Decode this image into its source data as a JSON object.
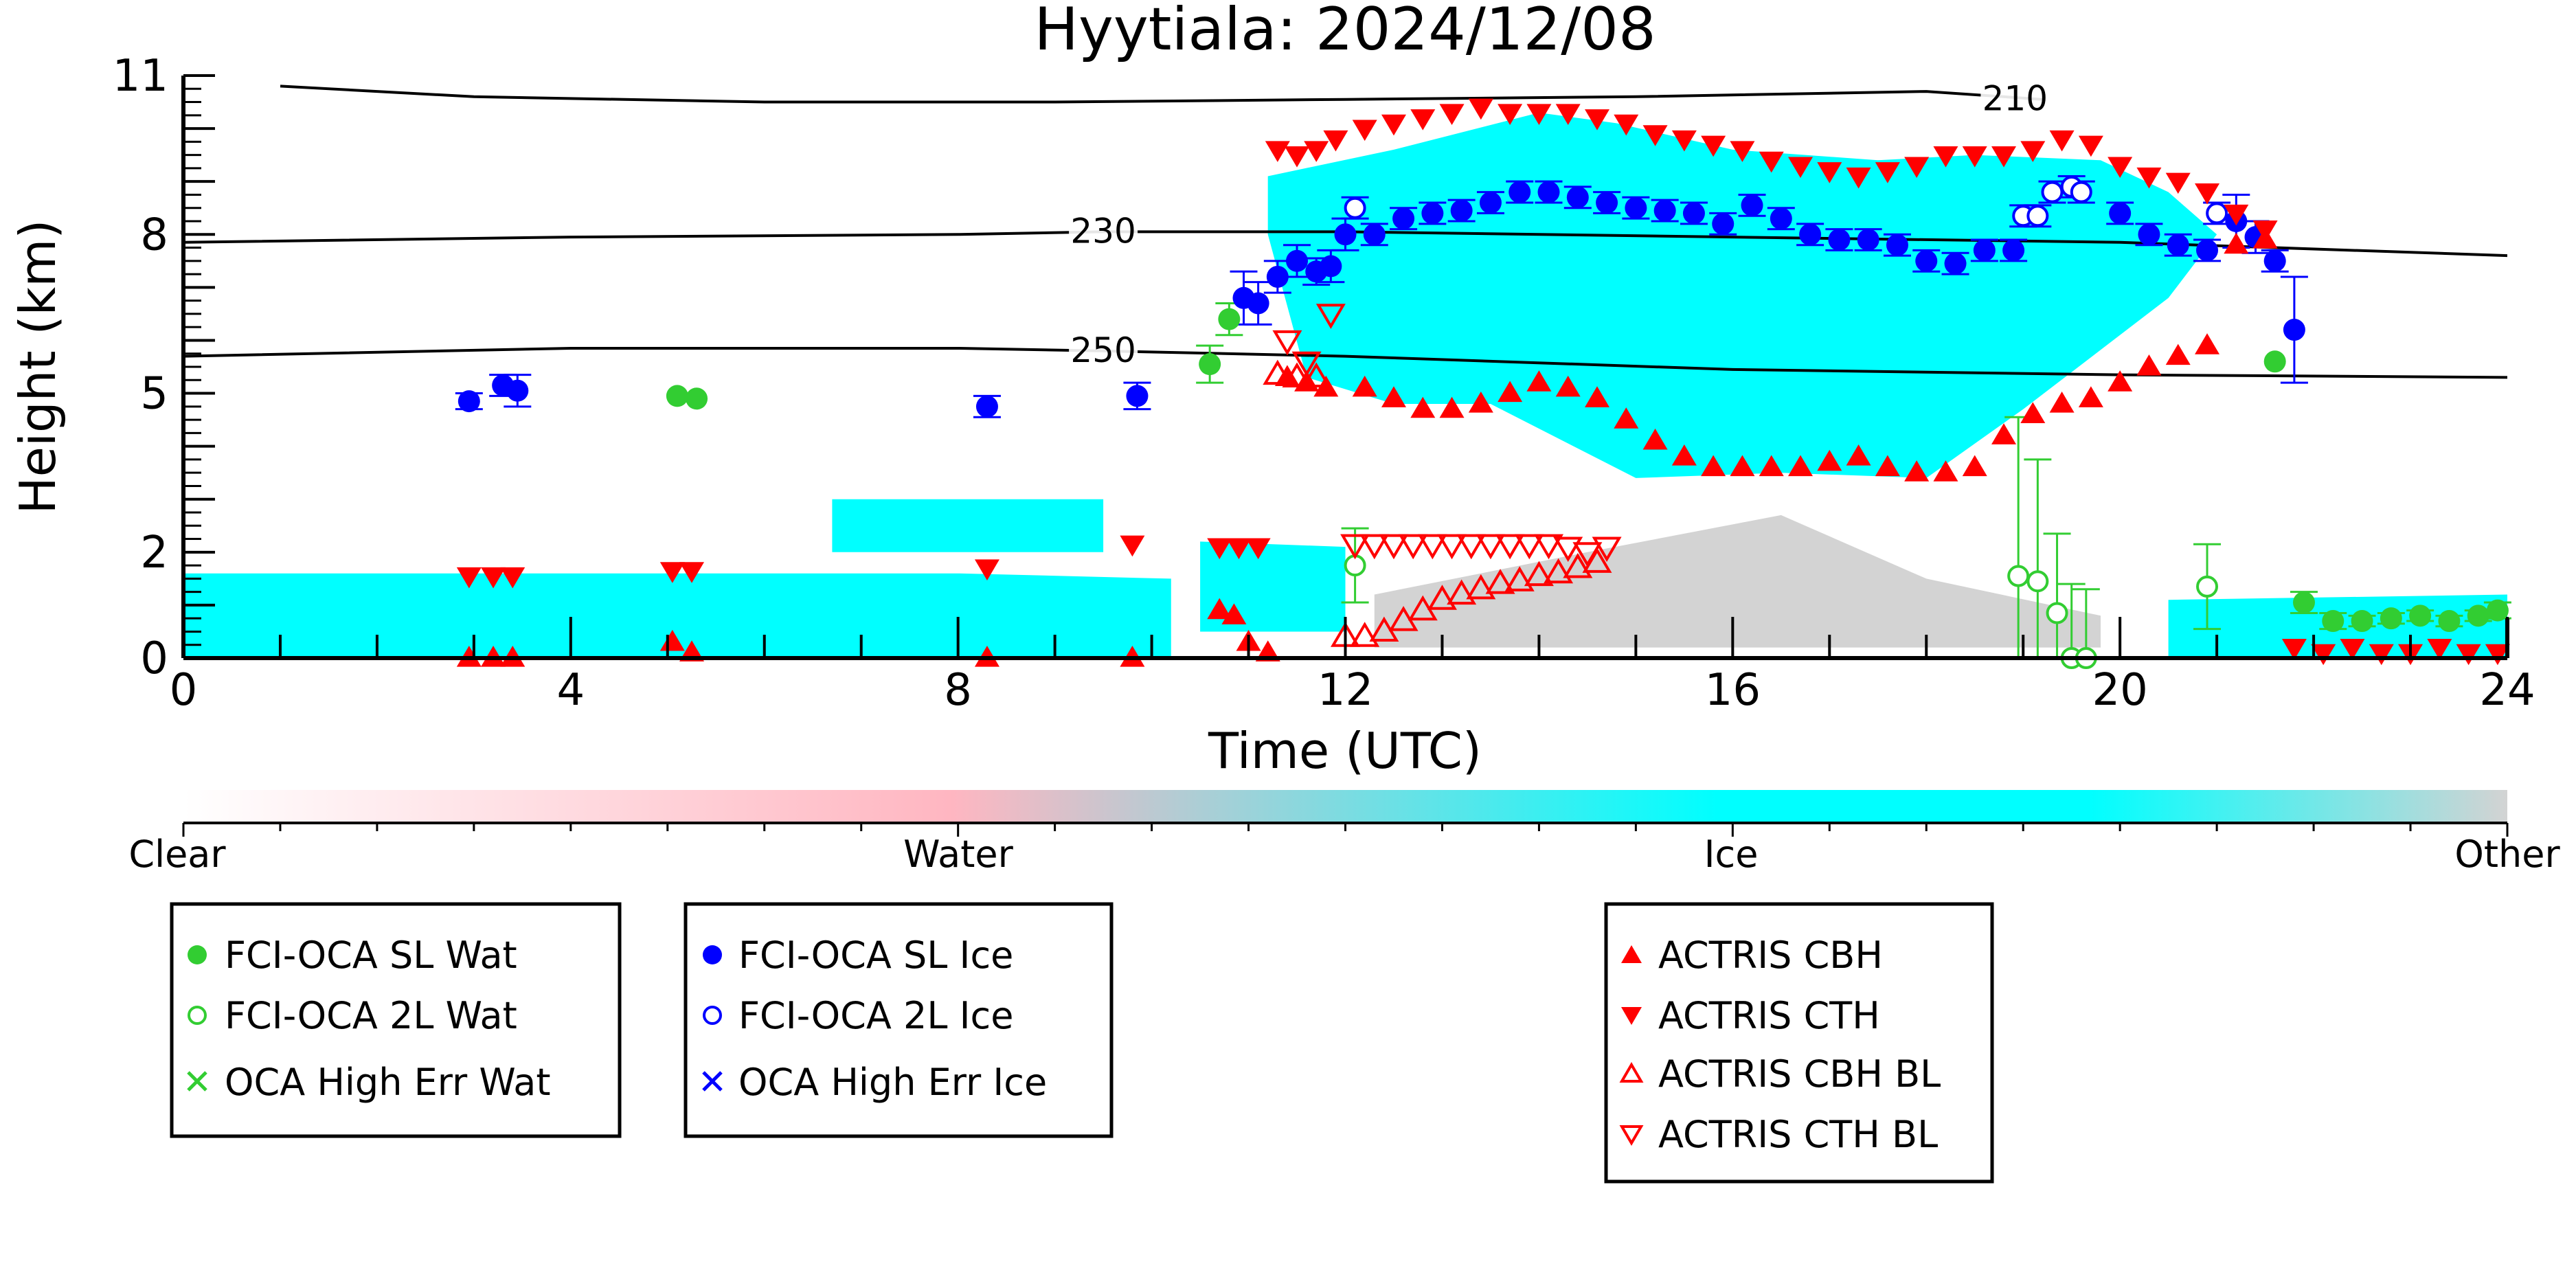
{
  "chart_data": {
    "type": "scatter",
    "title": "Hyytiala: 2024/12/08",
    "xlabel": "Time (UTC)",
    "ylabel": "Height (km)",
    "xlim": [
      0,
      24
    ],
    "ylim": [
      0,
      11
    ],
    "xticks": [
      "0",
      "4",
      "8",
      "12",
      "16",
      "20",
      "24"
    ],
    "xtick_values": [
      0,
      4,
      8,
      12,
      16,
      20,
      24
    ],
    "yticks": [
      "0",
      "2",
      "5",
      "8",
      "11"
    ],
    "ytick_values": [
      0,
      2,
      5,
      8,
      11
    ],
    "grid": false,
    "colorbar": {
      "labels": [
        "Clear",
        "Water",
        "Ice",
        "Other"
      ],
      "colors": [
        "#ffffff",
        "#ffb6c1",
        "#00ffff",
        "#d3d3d3"
      ]
    },
    "temperature_contours": [
      {
        "label": "210",
        "x": [
          1.0,
          3,
          6,
          9,
          12,
          15,
          18,
          19.2
        ],
        "y": [
          10.8,
          10.6,
          10.5,
          10.5,
          10.55,
          10.6,
          10.7,
          10.55
        ]
      },
      {
        "label": "230",
        "x": [
          0,
          4,
          8,
          9.5,
          12,
          16,
          20,
          24
        ],
        "y": [
          7.85,
          7.95,
          8.0,
          8.05,
          8.05,
          7.95,
          7.85,
          7.6
        ]
      },
      {
        "label": "250",
        "x": [
          0,
          4,
          8,
          9.5,
          12,
          16,
          20,
          24
        ],
        "y": [
          5.7,
          5.85,
          5.85,
          5.8,
          5.7,
          5.45,
          5.35,
          5.3
        ]
      }
    ],
    "background_regions": [
      {
        "class": "Ice",
        "x": [
          0,
          4,
          8,
          10.2,
          10.2,
          8,
          4,
          0
        ],
        "y": [
          1.6,
          1.6,
          1.6,
          1.5,
          0,
          0,
          0,
          0
        ]
      },
      {
        "class": "Ice",
        "x": [
          6.7,
          9.5,
          9.5,
          6.7
        ],
        "y": [
          3.0,
          3.0,
          2.0,
          2.0
        ]
      },
      {
        "class": "Ice",
        "x": [
          10.5,
          12.0,
          12.0,
          10.5
        ],
        "y": [
          2.2,
          2.1,
          0.5,
          0.5
        ]
      },
      {
        "class": "Ice",
        "x": [
          11.2,
          12.5,
          14,
          14.8,
          16,
          17.5,
          18.5,
          19.8,
          20.5,
          21,
          20.5,
          19,
          18,
          16.5,
          15,
          13.5,
          12.5,
          11.6,
          11.2
        ],
        "y": [
          9.1,
          9.6,
          10.3,
          10.1,
          9.6,
          9.4,
          9.5,
          9.4,
          8.8,
          8.0,
          6.8,
          4.7,
          3.4,
          3.5,
          3.4,
          4.8,
          4.8,
          5.3,
          8.0
        ]
      },
      {
        "class": "Other",
        "x": [
          12.3,
          14.5,
          16.5,
          18.0,
          19.8,
          19.8,
          12.3
        ],
        "y": [
          1.2,
          2.0,
          2.7,
          1.5,
          0.8,
          0.2,
          0.2
        ]
      },
      {
        "class": "Ice",
        "x": [
          20.5,
          24,
          24,
          20.5
        ],
        "y": [
          1.1,
          1.2,
          0,
          0
        ]
      }
    ],
    "series": [
      {
        "name": "FCI-OCA SL Wat",
        "marker": "filled-circle",
        "color": "#32cd32",
        "x": [
          5.1,
          5.3,
          10.6,
          10.8,
          21.6,
          21.9,
          22.2,
          22.5,
          22.8,
          23.1,
          23.4,
          23.7,
          23.9
        ],
        "y": [
          4.95,
          4.9,
          5.55,
          6.4,
          5.6,
          1.05,
          0.7,
          0.7,
          0.75,
          0.8,
          0.7,
          0.8,
          0.9
        ],
        "err": [
          0,
          0,
          0.35,
          0.3,
          0,
          0.2,
          0.15,
          0.1,
          0.1,
          0.1,
          0.1,
          0.1,
          0.15
        ]
      },
      {
        "name": "FCI-OCA 2L Wat",
        "marker": "open-circle",
        "color": "#32cd32",
        "x": [
          12.1,
          18.95,
          19.15,
          19.35,
          19.5,
          19.65,
          20.9
        ],
        "y": [
          1.75,
          1.55,
          1.45,
          0.85,
          0.0,
          0.0,
          1.35
        ],
        "err": [
          0.7,
          3.0,
          2.3,
          1.5,
          1.4,
          1.3,
          0.8
        ]
      },
      {
        "name": "OCA High Err Wat",
        "marker": "x",
        "color": "#32cd32",
        "x": [],
        "y": []
      },
      {
        "name": "FCI-OCA SL Ice",
        "marker": "filled-circle",
        "color": "#0000ff",
        "x": [
          2.95,
          3.3,
          3.45,
          8.3,
          9.85,
          10.95,
          11.1,
          11.3,
          11.5,
          11.7,
          11.85,
          12.0,
          12.3,
          12.6,
          12.9,
          13.2,
          13.5,
          13.8,
          14.1,
          14.4,
          14.7,
          15.0,
          15.3,
          15.6,
          15.9,
          16.2,
          16.5,
          16.8,
          17.1,
          17.4,
          17.7,
          18.0,
          18.3,
          18.6,
          18.9,
          20.0,
          20.3,
          20.6,
          20.9,
          21.2,
          21.4,
          21.6,
          21.8
        ],
        "y": [
          4.85,
          5.15,
          5.05,
          4.75,
          4.95,
          6.8,
          6.7,
          7.2,
          7.5,
          7.3,
          7.4,
          8.0,
          8.0,
          8.3,
          8.4,
          8.45,
          8.6,
          8.8,
          8.8,
          8.7,
          8.6,
          8.5,
          8.45,
          8.4,
          8.2,
          8.55,
          8.3,
          8.0,
          7.9,
          7.9,
          7.8,
          7.5,
          7.45,
          7.7,
          7.7,
          8.4,
          8.0,
          7.8,
          7.7,
          8.25,
          7.95,
          7.5,
          6.2
        ],
        "err": [
          0.15,
          0.2,
          0.3,
          0.2,
          0.25,
          0.5,
          0.4,
          0.3,
          0.3,
          0.25,
          0.3,
          0.3,
          0.2,
          0.2,
          0.2,
          0.2,
          0.2,
          0.2,
          0.2,
          0.2,
          0.2,
          0.2,
          0.2,
          0.2,
          0.2,
          0.2,
          0.2,
          0.2,
          0.2,
          0.2,
          0.2,
          0.2,
          0.2,
          0.2,
          0.2,
          0.2,
          0.2,
          0.2,
          0.2,
          0.5,
          0.3,
          0.2,
          1.0
        ]
      },
      {
        "name": "FCI-OCA 2L Ice",
        "marker": "open-circle",
        "color": "#0000ff",
        "x": [
          12.1,
          19.0,
          19.15,
          19.3,
          19.5,
          19.6,
          21.0
        ],
        "y": [
          8.5,
          8.35,
          8.35,
          8.8,
          8.9,
          8.8,
          8.4
        ],
        "err": [
          0.2,
          0.2,
          0.2,
          0.2,
          0.2,
          0.2,
          0.2
        ]
      },
      {
        "name": "OCA High Err Ice",
        "marker": "x",
        "color": "#0000ff",
        "x": [],
        "y": []
      },
      {
        "name": "ACTRIS CBH",
        "marker": "filled-triangle-up",
        "color": "#ff0000",
        "x": [
          2.95,
          3.2,
          3.4,
          5.05,
          5.25,
          8.3,
          9.8,
          10.7,
          10.85,
          11.0,
          11.2,
          11.4,
          11.6,
          11.8,
          12.2,
          12.5,
          12.8,
          13.1,
          13.4,
          13.7,
          14.0,
          14.3,
          14.6,
          14.9,
          15.2,
          15.5,
          15.8,
          16.1,
          16.4,
          16.7,
          17.0,
          17.3,
          17.6,
          17.9,
          18.2,
          18.5,
          18.8,
          19.1,
          19.4,
          19.7,
          20.0,
          20.3,
          20.6,
          20.9,
          21.2,
          21.5
        ],
        "y": [
          0.0,
          0.0,
          0.0,
          0.3,
          0.1,
          0.0,
          0.0,
          0.9,
          0.8,
          0.3,
          0.1,
          5.3,
          5.2,
          5.1,
          5.1,
          4.9,
          4.7,
          4.7,
          4.8,
          5.0,
          5.2,
          5.1,
          4.9,
          4.5,
          4.1,
          3.8,
          3.6,
          3.6,
          3.6,
          3.6,
          3.7,
          3.8,
          3.6,
          3.5,
          3.5,
          3.6,
          4.2,
          4.6,
          4.8,
          4.9,
          5.2,
          5.5,
          5.7,
          5.9,
          7.8,
          7.9
        ]
      },
      {
        "name": "ACTRIS CTH",
        "marker": "filled-triangle-down",
        "color": "#ff0000",
        "x": [
          2.95,
          3.2,
          3.4,
          5.05,
          5.25,
          8.3,
          9.8,
          10.7,
          10.9,
          11.1,
          11.3,
          11.5,
          11.7,
          11.9,
          12.2,
          12.5,
          12.8,
          13.1,
          13.4,
          13.7,
          14.0,
          14.3,
          14.6,
          14.9,
          15.2,
          15.5,
          15.8,
          16.1,
          16.4,
          16.7,
          17.0,
          17.3,
          17.6,
          17.9,
          18.2,
          18.5,
          18.8,
          19.1,
          19.4,
          19.7,
          20.0,
          20.3,
          20.6,
          20.9,
          21.2,
          21.5,
          21.8,
          22.1,
          22.4,
          22.7,
          23.0,
          23.3,
          23.6,
          23.9
        ],
        "y": [
          1.55,
          1.55,
          1.55,
          1.65,
          1.65,
          1.7,
          2.15,
          2.1,
          2.1,
          2.1,
          9.6,
          9.5,
          9.6,
          9.8,
          10.0,
          10.1,
          10.2,
          10.3,
          10.4,
          10.3,
          10.3,
          10.3,
          10.2,
          10.1,
          9.9,
          9.8,
          9.7,
          9.6,
          9.4,
          9.3,
          9.2,
          9.1,
          9.2,
          9.3,
          9.5,
          9.5,
          9.5,
          9.6,
          9.8,
          9.7,
          9.3,
          9.1,
          9.0,
          8.8,
          8.4,
          8.1,
          0.2,
          0.1,
          0.2,
          0.1,
          0.1,
          0.2,
          0.1,
          0.1
        ]
      },
      {
        "name": "ACTRIS CBH BL",
        "marker": "open-triangle-up",
        "color": "#ff0000",
        "x": [
          12.0,
          12.2,
          12.4,
          12.6,
          12.8,
          13.0,
          13.2,
          13.4,
          13.6,
          13.8,
          14.0,
          14.2,
          14.4,
          14.6,
          11.3,
          11.5,
          11.7
        ],
        "y": [
          0.4,
          0.4,
          0.5,
          0.7,
          0.9,
          1.1,
          1.2,
          1.3,
          1.4,
          1.45,
          1.55,
          1.6,
          1.7,
          1.8,
          5.35,
          5.3,
          5.3
        ]
      },
      {
        "name": "ACTRIS CTH BL",
        "marker": "open-triangle-down",
        "color": "#ff0000",
        "x": [
          11.4,
          11.6,
          11.85,
          12.1,
          12.3,
          12.5,
          12.7,
          12.9,
          13.1,
          13.3,
          13.5,
          13.7,
          13.9,
          14.1,
          14.3,
          14.5,
          14.7
        ],
        "y": [
          6.0,
          5.6,
          6.5,
          2.15,
          2.15,
          2.15,
          2.15,
          2.15,
          2.15,
          2.15,
          2.15,
          2.15,
          2.15,
          2.15,
          2.1,
          2.0,
          2.1
        ]
      }
    ]
  }
}
